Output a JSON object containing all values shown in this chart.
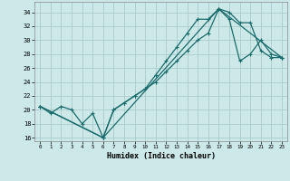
{
  "xlabel": "Humidex (Indice chaleur)",
  "background_color": "#cce8e8",
  "grid_color": "#aacccc",
  "line_color": "#1a6b6b",
  "xlim": [
    -0.5,
    23.5
  ],
  "ylim": [
    15.5,
    35.5
  ],
  "xticks": [
    0,
    1,
    2,
    3,
    4,
    5,
    6,
    7,
    8,
    9,
    10,
    11,
    12,
    13,
    14,
    15,
    16,
    17,
    18,
    19,
    20,
    21,
    22,
    23
  ],
  "yticks": [
    16,
    18,
    20,
    22,
    24,
    26,
    28,
    30,
    32,
    34
  ],
  "line1_x": [
    0,
    1,
    2,
    3,
    4,
    5,
    6,
    7,
    8,
    9,
    10,
    11,
    12,
    13,
    14,
    15,
    16,
    17,
    18,
    19,
    20,
    21,
    22,
    23
  ],
  "line1_y": [
    20.5,
    19.5,
    20.5,
    20,
    18,
    19.5,
    16,
    20,
    21,
    22,
    23,
    25,
    27,
    29,
    31,
    33,
    33,
    34.5,
    33,
    27,
    28,
    30,
    28,
    27.5
  ],
  "line2_x": [
    0,
    6,
    7,
    8,
    9,
    10,
    11,
    12,
    13,
    14,
    15,
    16,
    17,
    18,
    19,
    20,
    21,
    22,
    23
  ],
  "line2_y": [
    20.5,
    16,
    20,
    21,
    22,
    23,
    24,
    25.5,
    27,
    28.5,
    30,
    31,
    34.5,
    34,
    32.5,
    32.5,
    28.5,
    27.5,
    27.5
  ],
  "line3_x": [
    0,
    6,
    17,
    23
  ],
  "line3_y": [
    20.5,
    16,
    34.5,
    27.5
  ]
}
